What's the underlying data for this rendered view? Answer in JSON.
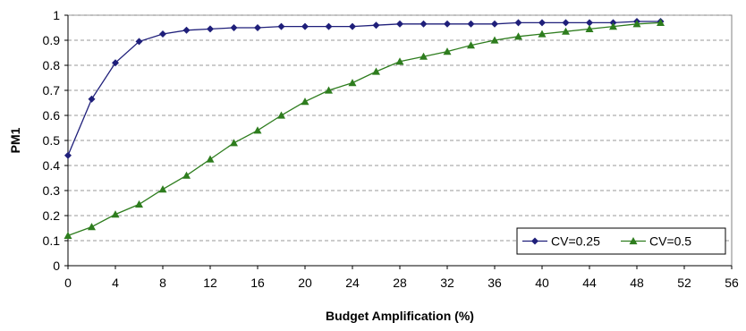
{
  "chart_data": {
    "type": "line",
    "xlabel": "Budget Amplification (%)",
    "ylabel": "PM1",
    "xlim": [
      0,
      56
    ],
    "ylim": [
      0,
      1
    ],
    "xticks": [
      "0",
      "4",
      "8",
      "12",
      "16",
      "20",
      "24",
      "28",
      "32",
      "36",
      "40",
      "44",
      "48",
      "52",
      "56"
    ],
    "yticks": [
      "0",
      "0.1",
      "0.2",
      "0.3",
      "0.4",
      "0.5",
      "0.6",
      "0.7",
      "0.8",
      "0.9",
      "1"
    ],
    "grid": "horizontal dashed",
    "legend_position": "bottom-right",
    "x": [
      0,
      2,
      4,
      6,
      8,
      10,
      12,
      14,
      16,
      18,
      20,
      22,
      24,
      26,
      28,
      30,
      32,
      34,
      36,
      38,
      40,
      42,
      44,
      46,
      48,
      50
    ],
    "series": [
      {
        "name": "CV=0.25",
        "marker": "diamond",
        "color": "#1f1f7a",
        "values": [
          0.44,
          0.665,
          0.81,
          0.895,
          0.925,
          0.94,
          0.945,
          0.95,
          0.95,
          0.955,
          0.955,
          0.955,
          0.955,
          0.96,
          0.965,
          0.965,
          0.965,
          0.965,
          0.965,
          0.97,
          0.97,
          0.97,
          0.97,
          0.97,
          0.975,
          0.975
        ]
      },
      {
        "name": "CV=0.5",
        "marker": "triangle",
        "color": "#2e7d1e",
        "values": [
          0.12,
          0.155,
          0.205,
          0.245,
          0.305,
          0.36,
          0.425,
          0.49,
          0.54,
          0.6,
          0.655,
          0.7,
          0.73,
          0.775,
          0.815,
          0.835,
          0.855,
          0.88,
          0.9,
          0.915,
          0.925,
          0.935,
          0.945,
          0.955,
          0.965,
          0.97
        ]
      }
    ]
  }
}
